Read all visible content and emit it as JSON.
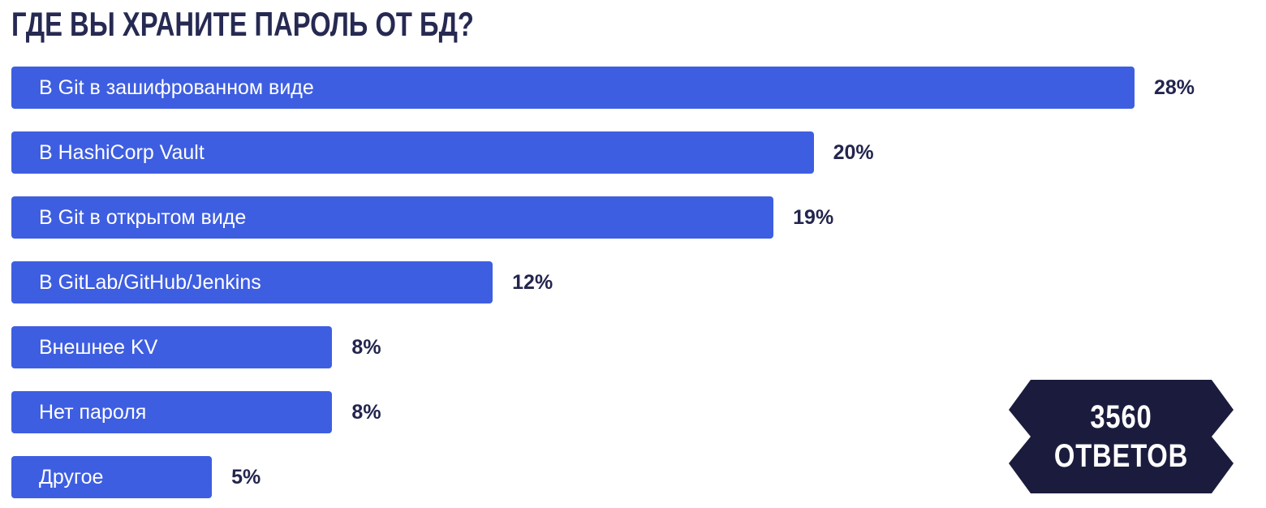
{
  "title": "ГДЕ ВЫ ХРАНИТЕ ПАРОЛЬ ОТ БД?",
  "chart_data": {
    "type": "bar",
    "orientation": "horizontal",
    "title": "ГДЕ ВЫ ХРАНИТЕ ПАРОЛЬ ОТ БД?",
    "categories": [
      "В Git в зашифрованном виде",
      "В HashiCorp Vault",
      "В Git в открытом виде",
      "В GitLab/GitHub/Jenkins",
      "Внешнее KV",
      "Нет пароля",
      "Другое"
    ],
    "values": [
      28,
      20,
      19,
      12,
      8,
      8,
      5
    ],
    "value_labels": [
      "28%",
      "20%",
      "19%",
      "12%",
      "8%",
      "8%",
      "5%"
    ],
    "value_suffix": "%",
    "xlim": [
      0,
      28
    ],
    "grid": false,
    "legend": "none",
    "bar_color": "#3E5EE1",
    "bar_text_color": "#FFFFFF",
    "value_label_color": "#23254E"
  },
  "badge": {
    "line1": "3560",
    "line2": "ОТВЕТОВ",
    "background_color": "#1B1C3D",
    "text_color": "#FFFFFF"
  },
  "colors": {
    "title": "#262A52",
    "background": "#FFFFFF",
    "bar": "#3E5EE1",
    "badge": "#1B1C3D"
  }
}
